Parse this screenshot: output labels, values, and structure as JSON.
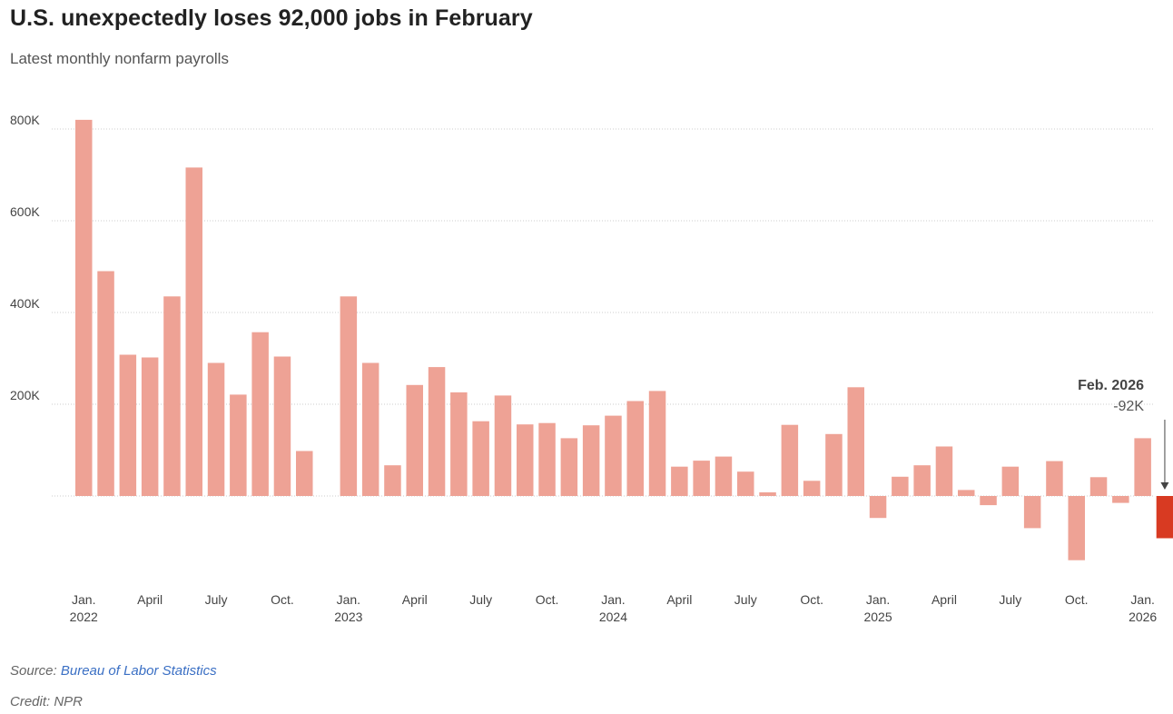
{
  "header": {
    "title": "U.S. unexpectedly loses 92,000 jobs in February",
    "subtitle": "Latest monthly nonfarm payrolls"
  },
  "footer": {
    "source_label": "Source: ",
    "source_link": "Bureau of Labor Statistics",
    "credit": "Credit: NPR"
  },
  "colors": {
    "bar": "#eea295",
    "highlight": "#d83a22",
    "grid": "#cccccc"
  },
  "chart_data": {
    "type": "bar",
    "title": "U.S. unexpectedly loses 92,000 jobs in February",
    "subtitle": "Latest monthly nonfarm payrolls",
    "unit": "jobs",
    "ylim": [
      -200000,
      820000
    ],
    "yticks": [
      {
        "value": 200000,
        "label": "200K"
      },
      {
        "value": 400000,
        "label": "400K"
      },
      {
        "value": 600000,
        "label": "600K"
      },
      {
        "value": 800000,
        "label": "800K"
      }
    ],
    "x_tick_labels": [
      {
        "index": 0,
        "line1": "Jan.",
        "line2": "2022"
      },
      {
        "index": 3,
        "line1": "April",
        "line2": ""
      },
      {
        "index": 6,
        "line1": "July",
        "line2": ""
      },
      {
        "index": 9,
        "line1": "Oct.",
        "line2": ""
      },
      {
        "index": 12,
        "line1": "Jan.",
        "line2": "2023"
      },
      {
        "index": 15,
        "line1": "April",
        "line2": ""
      },
      {
        "index": 18,
        "line1": "July",
        "line2": ""
      },
      {
        "index": 21,
        "line1": "Oct.",
        "line2": ""
      },
      {
        "index": 24,
        "line1": "Jan.",
        "line2": "2024"
      },
      {
        "index": 27,
        "line1": "April",
        "line2": ""
      },
      {
        "index": 30,
        "line1": "July",
        "line2": ""
      },
      {
        "index": 33,
        "line1": "Oct.",
        "line2": ""
      },
      {
        "index": 36,
        "line1": "Jan.",
        "line2": "2025"
      },
      {
        "index": 39,
        "line1": "April",
        "line2": ""
      },
      {
        "index": 42,
        "line1": "July",
        "line2": ""
      },
      {
        "index": 45,
        "line1": "Oct.",
        "line2": ""
      },
      {
        "index": 48,
        "line1": "Jan.",
        "line2": "2026"
      }
    ],
    "categories": [
      "Jan. 2022",
      "Feb. 2022",
      "Mar. 2022",
      "Apr. 2022",
      "May 2022",
      "Jun. 2022",
      "Jul. 2022",
      "Aug. 2022",
      "Sep. 2022",
      "Oct. 2022",
      "Nov. 2022",
      "Dec. 2022",
      "Jan. 2023",
      "Feb. 2023",
      "Mar. 2023",
      "Apr. 2023",
      "May 2023",
      "Jun. 2023",
      "Jul. 2023",
      "Aug. 2023",
      "Sep. 2023",
      "Oct. 2023",
      "Nov. 2023",
      "Dec. 2023",
      "Jan. 2024",
      "Feb. 2024",
      "Mar. 2024",
      "Apr. 2024",
      "May 2024",
      "Jun. 2024",
      "Jul. 2024",
      "Aug. 2024",
      "Sep. 2024",
      "Oct. 2024",
      "Nov. 2024",
      "Dec. 2024",
      "Jan. 2025",
      "Feb. 2025",
      "Mar. 2025",
      "Apr. 2025",
      "May 2025",
      "Jun. 2025",
      "Jul. 2025",
      "Aug. 2025",
      "Sep. 2025",
      "Oct. 2025",
      "Nov. 2025",
      "Dec. 2025",
      "Jan. 2026",
      "Feb. 2026"
    ],
    "values": [
      820000,
      490000,
      308000,
      302000,
      435000,
      716000,
      290000,
      221000,
      357000,
      304000,
      98000,
      0,
      435000,
      290000,
      67000,
      242000,
      281000,
      226000,
      163000,
      219000,
      156000,
      159000,
      126000,
      154000,
      175000,
      207000,
      229000,
      64000,
      77000,
      86000,
      53000,
      8000,
      155000,
      33000,
      135000,
      237000,
      -48000,
      42000,
      67000,
      108000,
      13000,
      -20000,
      64000,
      -70000,
      76000,
      -140000,
      41000,
      -15000,
      126000,
      -92000
    ],
    "highlight_index": 49,
    "annotation": {
      "label": "Feb. 2026",
      "value_label": "-92K"
    }
  }
}
